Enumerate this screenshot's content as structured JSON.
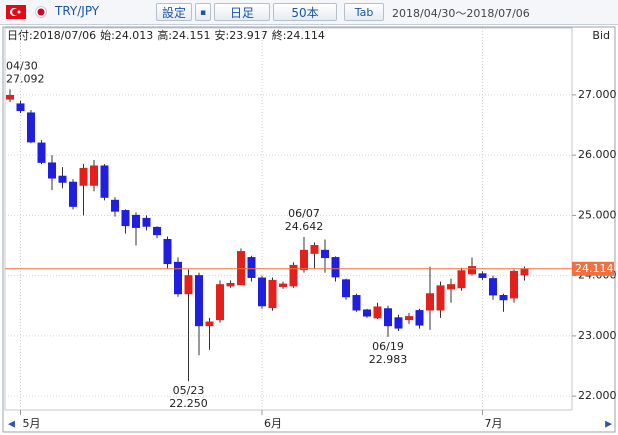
{
  "toolbar": {
    "pair": "TRY/JPY",
    "settings": "設定",
    "period": "日足",
    "count": "50本",
    "tab": "Tab",
    "range": "2018/04/30〜2018/07/06"
  },
  "chart_data": {
    "type": "candlestick",
    "info": [
      "日付:2018/07/06",
      "始:24.013",
      "高:24.151",
      "安:23.917",
      "終:24.114"
    ],
    "price_side": "Bid",
    "categories": [
      null,
      "5月",
      null,
      null,
      null,
      null,
      null,
      null,
      null,
      null,
      null,
      null,
      null,
      null,
      null,
      null,
      null,
      null,
      null,
      null,
      null,
      null,
      null,
      null,
      "6月",
      null,
      null,
      null,
      null,
      null,
      null,
      null,
      null,
      null,
      null,
      null,
      null,
      null,
      null,
      null,
      null,
      null,
      null,
      null,
      null,
      "7月",
      null,
      null,
      null,
      null
    ],
    "open": [
      26.93,
      26.85,
      26.7,
      26.2,
      25.87,
      25.65,
      25.55,
      25.5,
      25.5,
      25.82,
      25.25,
      25.08,
      25.0,
      24.95,
      24.8,
      24.6,
      24.22,
      23.7,
      24.0,
      23.17,
      23.27,
      23.83,
      23.85,
      24.3,
      23.96,
      23.47,
      23.82,
      23.83,
      24.1,
      24.37,
      24.42,
      24.3,
      23.93,
      23.67,
      23.43,
      23.3,
      23.45,
      23.3,
      23.27,
      23.42,
      23.43,
      23.43,
      23.78,
      23.8,
      24.03,
      24.03,
      23.95,
      23.67,
      23.63,
      24.013
    ],
    "high": [
      27.092,
      26.9,
      26.75,
      26.25,
      26.0,
      25.8,
      25.6,
      25.85,
      25.92,
      25.85,
      25.3,
      25.1,
      25.05,
      25.0,
      24.82,
      24.65,
      24.3,
      24.1,
      24.05,
      23.3,
      23.92,
      23.92,
      24.45,
      24.33,
      24.0,
      23.97,
      23.9,
      24.22,
      24.642,
      24.55,
      24.6,
      24.32,
      23.95,
      23.7,
      23.45,
      23.55,
      23.5,
      23.35,
      23.38,
      23.45,
      24.15,
      23.9,
      23.95,
      24.13,
      24.3,
      24.07,
      24.0,
      23.7,
      24.1,
      24.151
    ],
    "low": [
      26.88,
      26.7,
      26.2,
      25.85,
      25.42,
      25.45,
      25.1,
      25.0,
      25.4,
      25.25,
      24.98,
      24.7,
      24.5,
      24.75,
      24.62,
      24.12,
      23.65,
      22.25,
      22.68,
      22.77,
      23.22,
      23.8,
      23.85,
      23.9,
      23.45,
      23.42,
      23.78,
      23.8,
      24.05,
      24.12,
      24.05,
      23.9,
      23.6,
      23.4,
      23.3,
      23.28,
      22.983,
      23.08,
      23.2,
      23.12,
      23.1,
      23.3,
      23.55,
      23.75,
      24.0,
      23.93,
      23.6,
      23.4,
      23.55,
      23.917
    ],
    "close": [
      26.99,
      26.74,
      26.22,
      25.88,
      25.62,
      25.55,
      25.15,
      25.78,
      25.82,
      25.3,
      25.07,
      24.83,
      24.8,
      24.82,
      24.68,
      24.2,
      23.7,
      24.0,
      23.17,
      23.23,
      23.85,
      23.87,
      24.4,
      23.97,
      23.5,
      23.92,
      23.86,
      24.17,
      24.42,
      24.5,
      24.3,
      23.98,
      23.65,
      23.43,
      23.33,
      23.48,
      23.17,
      23.13,
      23.32,
      23.18,
      23.7,
      23.83,
      23.85,
      24.08,
      24.15,
      23.97,
      23.68,
      23.6,
      24.07,
      24.114
    ],
    "up_color": "#e3211c",
    "down_color": "#1f1fe0",
    "ylim": [
      21.77,
      28.11
    ],
    "yticks": [
      {
        "value": 22,
        "label": "22.000"
      },
      {
        "value": 23,
        "label": "23.000"
      },
      {
        "value": 24,
        "label": "24.000"
      },
      {
        "value": 25,
        "label": "25.000"
      },
      {
        "value": 26,
        "label": "26.000"
      },
      {
        "value": 27,
        "label": "27.000"
      }
    ],
    "last_price": 24.114,
    "last_price_color": "#f07040",
    "annotations": [
      {
        "date": "04/30",
        "value": 27.092,
        "label": "27.092",
        "side": "high"
      },
      {
        "date": "05/23",
        "value": 22.25,
        "label": "22.250",
        "side": "low"
      },
      {
        "date": "06/07",
        "value": 24.642,
        "label": "24.642",
        "side": "high"
      },
      {
        "date": "06/19",
        "value": 22.983,
        "label": "22.983",
        "side": "low"
      }
    ],
    "grid": true
  }
}
